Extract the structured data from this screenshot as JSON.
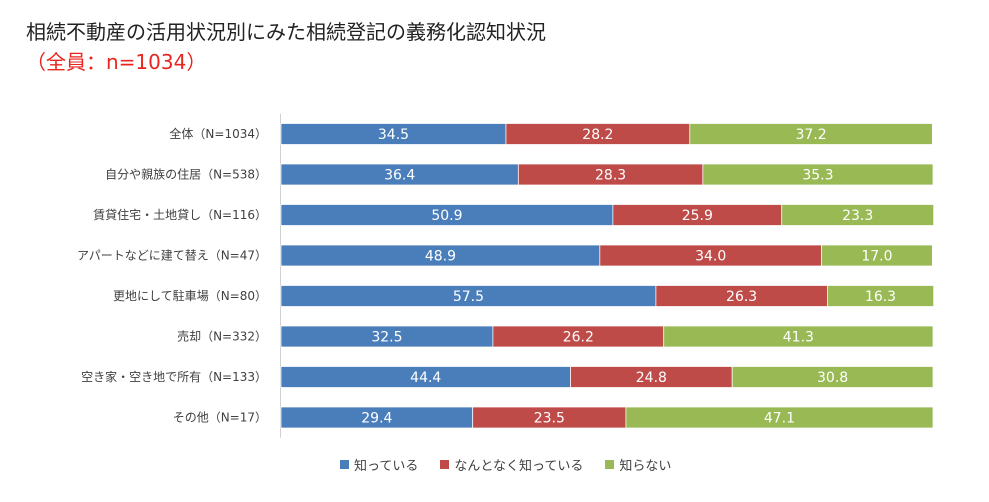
{
  "chart_data": {
    "type": "bar",
    "orientation": "horizontal",
    "stacked": true,
    "percent_stacked": true,
    "title": "相続不動産の活用状況別にみた相続登記の義務化認知状況",
    "subtitle": "（全員：n=1034）",
    "categories": [
      "全体（N=1034）",
      "自分や親族の住居（N=538）",
      "賃貸住宅・土地貸し（N=116）",
      "アパートなどに建て替え（N=47）",
      "更地にして駐車場（N=80）",
      "売却（N=332）",
      "空き家・空き地で所有（N=133）",
      "その他（N=17）"
    ],
    "series": [
      {
        "name": "知っている",
        "color": "#4a7ebb",
        "values": [
          34.5,
          36.4,
          50.9,
          48.9,
          57.5,
          32.5,
          44.4,
          29.4
        ]
      },
      {
        "name": "なんとなく知っている",
        "color": "#be4b48",
        "values": [
          28.2,
          28.3,
          25.9,
          34.0,
          26.3,
          26.2,
          24.8,
          23.5
        ]
      },
      {
        "name": "知らない",
        "color": "#98b954",
        "values": [
          37.2,
          35.3,
          23.3,
          17.0,
          16.3,
          41.3,
          30.8,
          47.1
        ]
      }
    ],
    "xlim": [
      0,
      100
    ],
    "legend_position": "bottom",
    "grid": false
  }
}
